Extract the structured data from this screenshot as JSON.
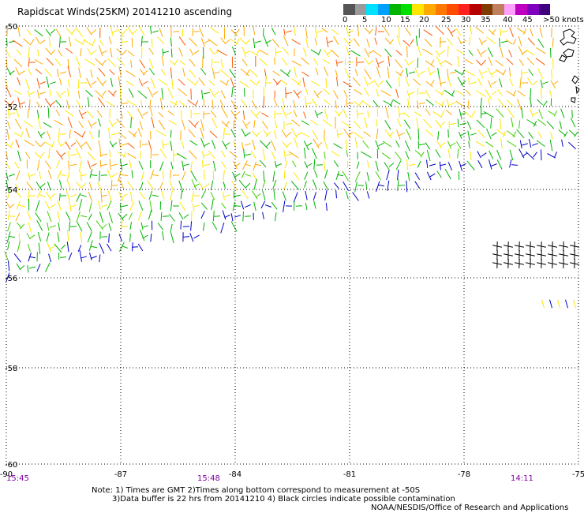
{
  "title": "Rapidscat Winds(25KM) 20141210 ascending",
  "legend": {
    "colors": [
      "#555555",
      "#9a9a9a",
      "#00e0ff",
      "#00a0ff",
      "#00b400",
      "#00e000",
      "#ffe600",
      "#ffaa00",
      "#ff7800",
      "#ff4d00",
      "#ff2020",
      "#b40000",
      "#7f3c00",
      "#c08060",
      "#ffa0ff",
      "#c000c0",
      "#8000c0",
      "#400080"
    ],
    "labels": [
      "0",
      "5",
      "10",
      "15",
      "20",
      "25",
      "30",
      "35",
      "40",
      "45",
      ">50 knots"
    ]
  },
  "latitudes": [
    "-50",
    "-52",
    "-54",
    "-56",
    "-58",
    "-60"
  ],
  "longitudes": [
    "-90",
    "-87",
    "-84",
    "-81",
    "-78",
    "-75"
  ],
  "times": [
    "15:45",
    "15:48",
    "14:11"
  ],
  "notes": {
    "line1": "Note: 1) Times are GMT 2)Times along bottom correspond to measurement at -50S",
    "line2": "3)Data buffer is 22 hrs from 20141210 4) Black circles indicate possible contamination",
    "credit": "NOAA/NESDIS/Office of Research and Applications"
  },
  "wind_colors": {
    "blue": "#0000c8",
    "green": "#00b400",
    "light_green": "#40d000",
    "yellow": "#ffe600",
    "orange": "#ffaa00",
    "red_orange": "#ff5a00",
    "black": "#000000"
  }
}
